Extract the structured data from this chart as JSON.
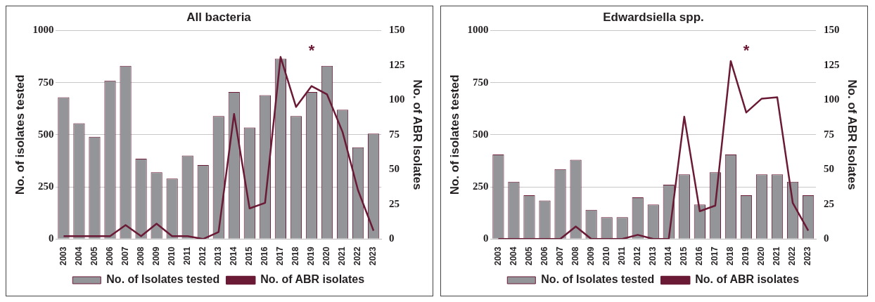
{
  "chart_data": [
    {
      "type": "bar",
      "title": "All bacteria",
      "ylabel": "No. of isolates tested",
      "y2label": "No. of ABR Isolates",
      "categories": [
        "2003",
        "2004",
        "2005",
        "2006",
        "2007",
        "2008",
        "2009",
        "2010",
        "2011",
        "2012",
        "2013",
        "2014",
        "2015",
        "2016",
        "2017",
        "2018",
        "2019",
        "2020",
        "2021",
        "2022",
        "2023"
      ],
      "series": [
        {
          "name": "No. of Isolates tested",
          "color": "#939598",
          "values": [
            680,
            555,
            490,
            760,
            830,
            385,
            320,
            290,
            400,
            355,
            590,
            705,
            535,
            690,
            865,
            590,
            705,
            830,
            620,
            440,
            505
          ]
        },
        {
          "name": "No. of ABR isolates",
          "type": "line",
          "axis": "y2",
          "color": "#6b1a36",
          "values": [
            2,
            2,
            2,
            2,
            10,
            2,
            11,
            2,
            2,
            0,
            5,
            90,
            22,
            26,
            131,
            95,
            110,
            104,
            77,
            35,
            6
          ]
        }
      ],
      "ylim": [
        0,
        1000
      ],
      "yticks": [
        0,
        250,
        500,
        750,
        1000
      ],
      "y2lim": [
        0,
        150
      ],
      "y2ticks": [
        0,
        25,
        50,
        75,
        100,
        125,
        150
      ],
      "grid": "y",
      "legend": "bottom",
      "marker": "none",
      "line_style": "solid",
      "annotations": [
        "*"
      ]
    },
    {
      "type": "bar",
      "title": "Edwardsiella spp.",
      "ylabel": "No. of isolates tested",
      "y2label": "No. of ABR Isolates",
      "categories": [
        "2003",
        "2004",
        "2005",
        "2006",
        "2007",
        "2008",
        "2009",
        "2010",
        "2011",
        "2012",
        "2013",
        "2014",
        "2015",
        "2016",
        "2017",
        "2018",
        "2019",
        "2020",
        "2021",
        "2022",
        "2023"
      ],
      "series": [
        {
          "name": "No. of Isolates tested",
          "color": "#939598",
          "values": [
            405,
            275,
            210,
            185,
            335,
            380,
            140,
            105,
            105,
            200,
            165,
            260,
            310,
            165,
            320,
            405,
            210,
            310,
            310,
            275,
            210
          ]
        },
        {
          "name": "No. of ABR isolates",
          "type": "line",
          "axis": "y2",
          "color": "#6b1a36",
          "values": [
            0,
            0,
            0,
            0,
            0,
            9,
            0,
            0,
            0,
            3,
            0,
            0,
            88,
            20,
            24,
            128,
            91,
            101,
            102,
            26,
            6
          ]
        }
      ],
      "ylim": [
        0,
        1000
      ],
      "yticks": [
        0,
        250,
        500,
        750,
        1000
      ],
      "y2lim": [
        0,
        150
      ],
      "y2ticks": [
        0,
        25,
        50,
        75,
        100,
        125,
        150
      ],
      "grid": "y",
      "legend": "bottom",
      "marker": "none",
      "line_style": "solid",
      "annotations": [
        "*"
      ]
    }
  ]
}
